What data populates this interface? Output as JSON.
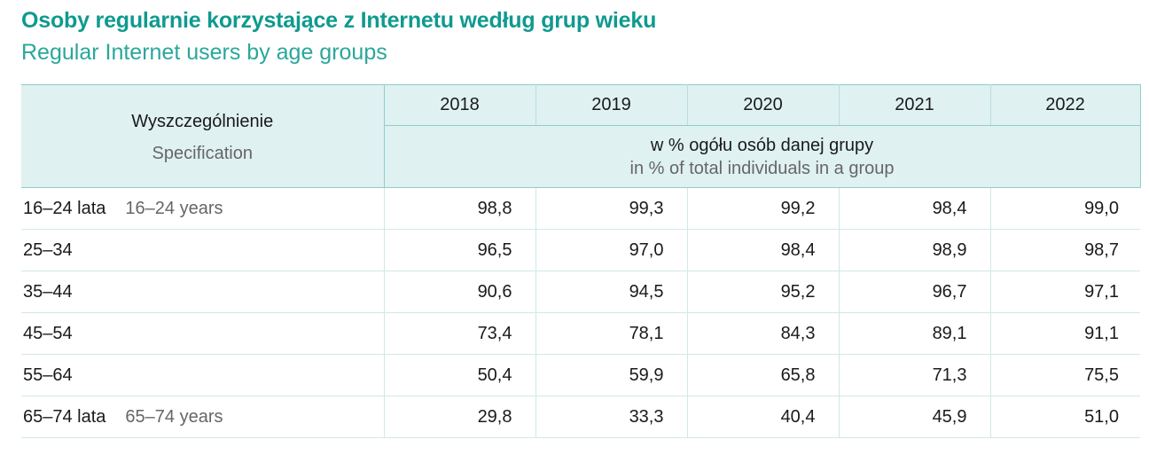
{
  "title_pl": "Osoby regularnie korzystające z Internetu według grup wieku",
  "title_en": "Regular Internet users by age groups",
  "header": {
    "spec_pl": "Wyszczególnienie",
    "spec_en": "Specification",
    "years": [
      "2018",
      "2019",
      "2020",
      "2021",
      "2022"
    ],
    "unit_pl": "w % ogółu osób danej grupy",
    "unit_en": "in % of total individuals in a group"
  },
  "rows": [
    {
      "label_pl": "16–24 lata",
      "label_en": "16–24 years",
      "values": [
        "98,8",
        "99,3",
        "99,2",
        "98,4",
        "99,0"
      ]
    },
    {
      "label_pl": "25–34",
      "label_en": "",
      "values": [
        "96,5",
        "97,0",
        "98,4",
        "98,9",
        "98,7"
      ]
    },
    {
      "label_pl": "35–44",
      "label_en": "",
      "values": [
        "90,6",
        "94,5",
        "95,2",
        "96,7",
        "97,1"
      ]
    },
    {
      "label_pl": "45–54",
      "label_en": "",
      "values": [
        "73,4",
        "78,1",
        "84,3",
        "89,1",
        "91,1"
      ]
    },
    {
      "label_pl": "55–64",
      "label_en": "",
      "values": [
        "50,4",
        "59,9",
        "65,8",
        "71,3",
        "75,5"
      ]
    },
    {
      "label_pl": "65–74 lata",
      "label_en": "65–74 years",
      "values": [
        "29,8",
        "33,3",
        "40,4",
        "45,9",
        "51,0"
      ]
    }
  ],
  "colors": {
    "title": "#0f9a8f",
    "subtitle": "#2aa79b",
    "header_bg": "#dff1f1",
    "rule": "#8ecfcd"
  }
}
